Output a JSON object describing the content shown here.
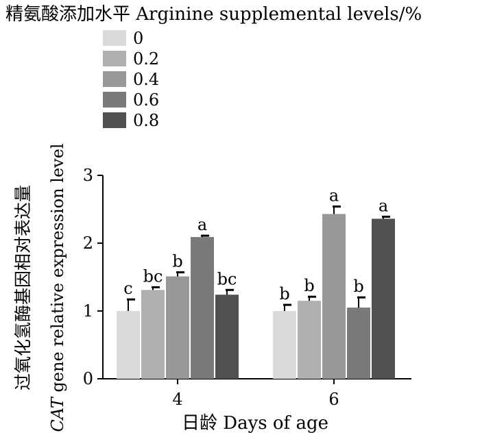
{
  "chart_data": {
    "type": "bar",
    "legend_title": "精氨酸添加水平 Arginine supplemental levels/%",
    "legend_position": "top-left",
    "categories": [
      "4",
      "6"
    ],
    "xlabel": "日龄 Days of age",
    "ylabel_cn": "过氧化氢酶基因相对表达量",
    "ylabel_gene": "CAT",
    "ylabel_en": " gene relative expression level",
    "ylim": [
      0,
      3
    ],
    "yticks": [
      "0",
      "1",
      "2",
      "3"
    ],
    "grid": false,
    "series": [
      {
        "name": "0",
        "color": "#d9d9d9",
        "values": [
          1.0,
          1.0
        ],
        "errors": [
          0.17,
          0.09
        ],
        "labels": [
          "c",
          "b"
        ]
      },
      {
        "name": "0.2",
        "color": "#b0b0b0",
        "values": [
          1.31,
          1.15
        ],
        "errors": [
          0.04,
          0.06
        ],
        "labels": [
          "bc",
          "b"
        ]
      },
      {
        "name": "0.4",
        "color": "#989898",
        "values": [
          1.51,
          2.43
        ],
        "errors": [
          0.06,
          0.11
        ],
        "labels": [
          "b",
          "a"
        ]
      },
      {
        "name": "0.6",
        "color": "#7a7a7a",
        "values": [
          2.09,
          1.05
        ],
        "errors": [
          0.02,
          0.15
        ],
        "labels": [
          "a",
          "b"
        ]
      },
      {
        "name": "0.8",
        "color": "#505050",
        "values": [
          1.24,
          2.36
        ],
        "errors": [
          0.07,
          0.03
        ],
        "labels": [
          "bc",
          "a"
        ]
      }
    ]
  }
}
